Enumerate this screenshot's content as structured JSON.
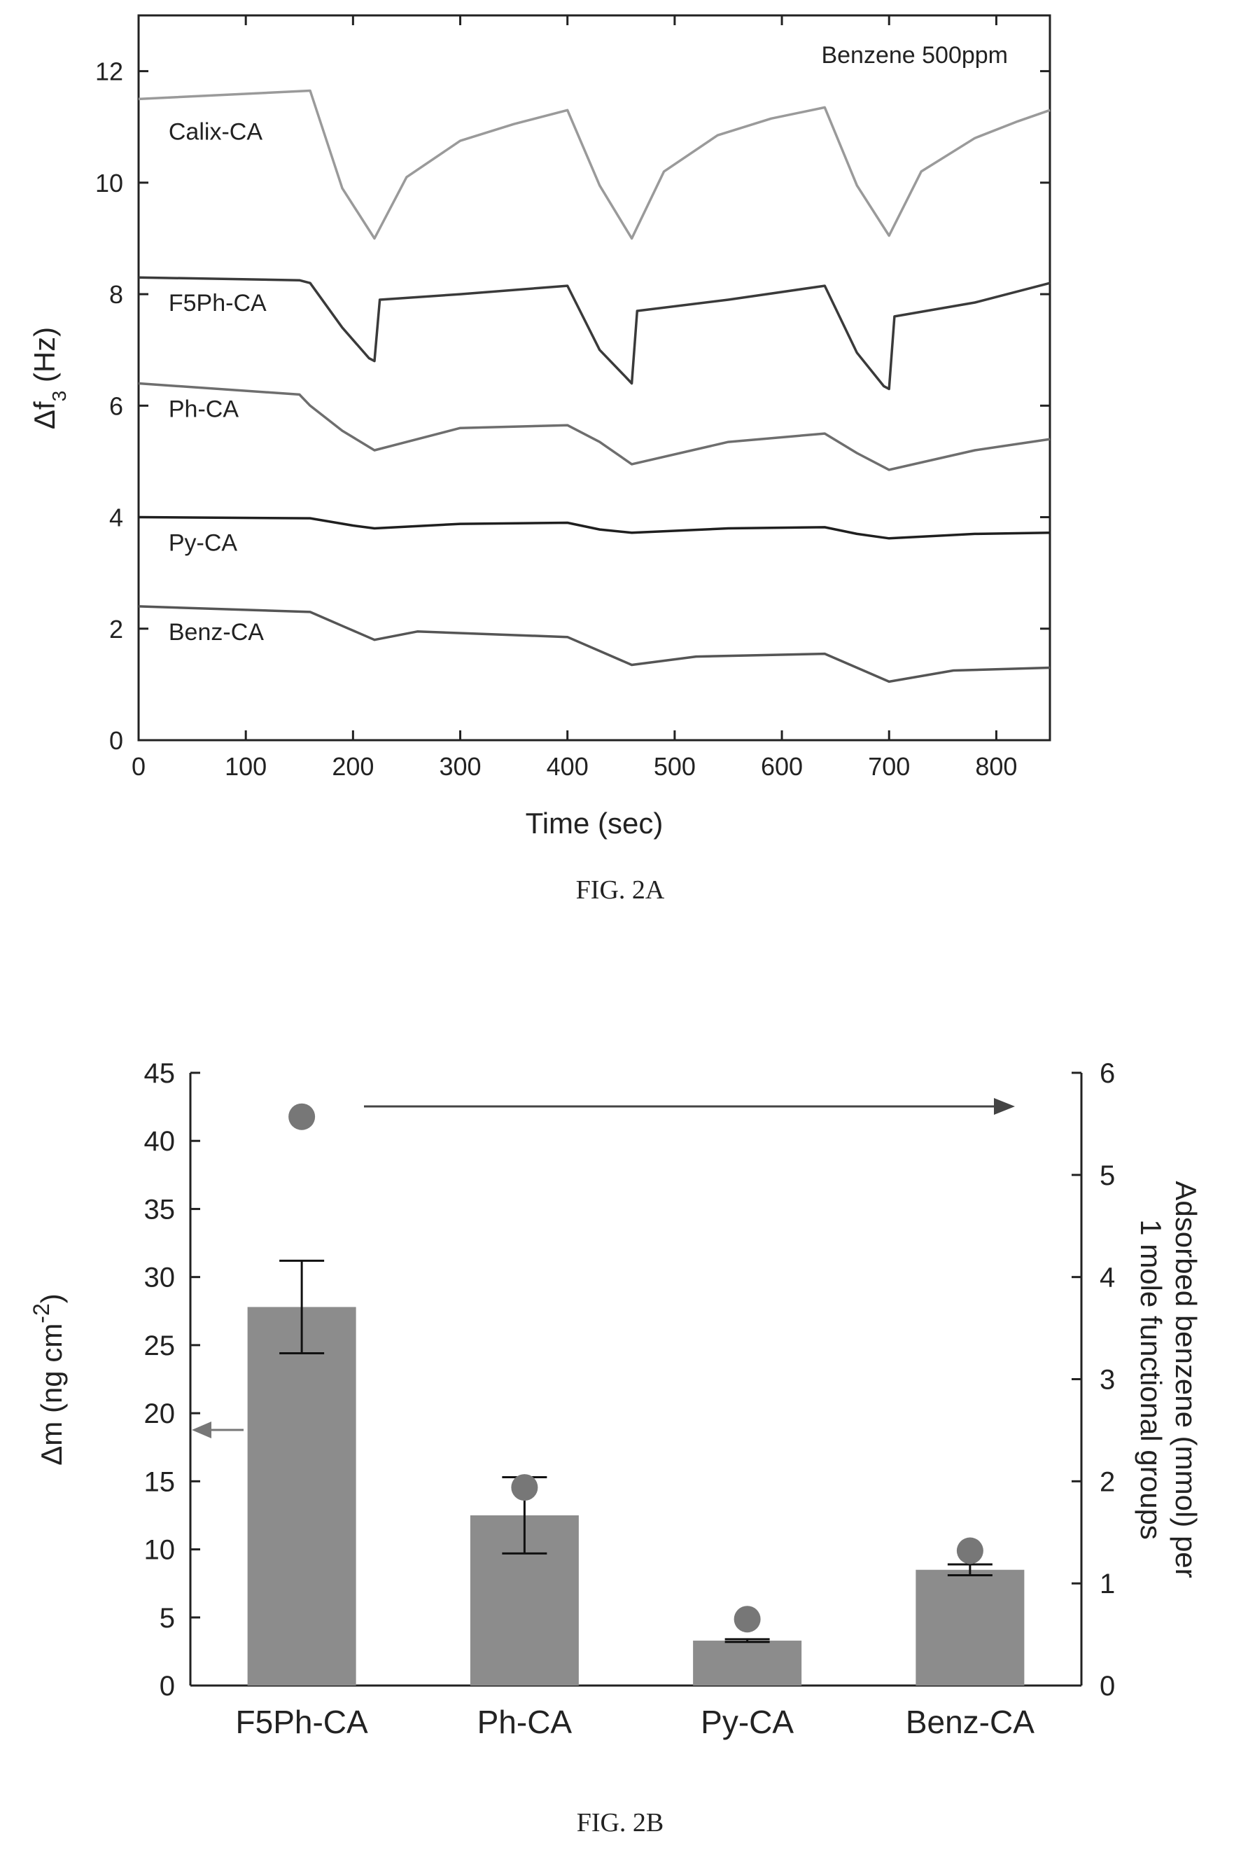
{
  "chart_data": [
    {
      "type": "line",
      "caption": "FIG. 2A",
      "annotation": "Benzene 500ppm",
      "xlabel": "Time (sec)",
      "ylabel_main": "Δf",
      "ylabel_sub": "3",
      "ylabel_unit": " (Hz)",
      "xlim": [
        0,
        850
      ],
      "ylim": [
        0,
        13
      ],
      "xticks": [
        0,
        100,
        200,
        300,
        400,
        500,
        600,
        700,
        800
      ],
      "yticks": [
        0,
        2,
        4,
        6,
        8,
        10,
        12
      ],
      "grid": false,
      "series": [
        {
          "name": "Calix-CA",
          "color": "#9a9a9a",
          "x": [
            0,
            160,
            190,
            220,
            250,
            300,
            350,
            400,
            430,
            460,
            490,
            540,
            590,
            640,
            670,
            700,
            730,
            780,
            820,
            850
          ],
          "y": [
            11.5,
            11.65,
            9.9,
            9.0,
            10.1,
            10.75,
            11.05,
            11.3,
            9.95,
            9.0,
            10.2,
            10.85,
            11.15,
            11.35,
            9.95,
            9.05,
            10.2,
            10.8,
            11.1,
            11.3
          ]
        },
        {
          "name": "F5Ph-CA",
          "color": "#3a3a3a",
          "x": [
            0,
            150,
            160,
            190,
            215,
            220,
            225,
            300,
            400,
            430,
            455,
            460,
            465,
            550,
            640,
            670,
            695,
            700,
            705,
            780,
            850
          ],
          "y": [
            8.3,
            8.25,
            8.2,
            7.4,
            6.85,
            6.8,
            7.9,
            8.0,
            8.15,
            7.0,
            6.5,
            6.4,
            7.7,
            7.9,
            8.15,
            6.95,
            6.35,
            6.3,
            7.6,
            7.85,
            8.2
          ]
        },
        {
          "name": "Ph-CA",
          "color": "#6e6e6e",
          "x": [
            0,
            150,
            160,
            190,
            220,
            300,
            400,
            430,
            460,
            550,
            640,
            670,
            700,
            780,
            850
          ],
          "y": [
            6.4,
            6.2,
            6.0,
            5.55,
            5.2,
            5.6,
            5.65,
            5.35,
            4.95,
            5.35,
            5.5,
            5.15,
            4.85,
            5.2,
            5.4
          ]
        },
        {
          "name": "Py-CA",
          "color": "#1f1f1f",
          "x": [
            0,
            160,
            200,
            220,
            300,
            400,
            430,
            460,
            550,
            640,
            670,
            700,
            780,
            850
          ],
          "y": [
            4.0,
            3.98,
            3.85,
            3.8,
            3.88,
            3.9,
            3.78,
            3.72,
            3.8,
            3.82,
            3.7,
            3.62,
            3.7,
            3.72
          ]
        },
        {
          "name": "Benz-CA",
          "color": "#555555",
          "x": [
            0,
            160,
            190,
            220,
            260,
            400,
            430,
            460,
            520,
            640,
            670,
            700,
            760,
            850
          ],
          "y": [
            2.4,
            2.3,
            2.05,
            1.8,
            1.95,
            1.85,
            1.6,
            1.35,
            1.5,
            1.55,
            1.3,
            1.05,
            1.25,
            1.3
          ]
        }
      ]
    },
    {
      "type": "bar",
      "caption": "FIG. 2B",
      "categories": [
        "F5Ph-CA",
        "Ph-CA",
        "Py-CA",
        "Benz-CA"
      ],
      "ylabel_left_main": "Δm (ng cm",
      "ylabel_left_sup": "-2",
      "ylabel_left_end": ")",
      "ylabel_right_line1": "Adsorbed benzene (mmol) per",
      "ylabel_right_line2": "1 mole functional groups",
      "ylim_left": [
        0,
        45
      ],
      "ylim_right": [
        0,
        6
      ],
      "yticks_left": [
        0,
        5,
        10,
        15,
        20,
        25,
        30,
        35,
        40,
        45
      ],
      "yticks_right": [
        0,
        1,
        2,
        3,
        4,
        5,
        6
      ],
      "bar_color": "#8c8c8c",
      "point_color": "#777777",
      "series": [
        {
          "axis": "left",
          "kind": "bar",
          "values": [
            27.8,
            12.5,
            3.3,
            8.5
          ],
          "error": [
            3.4,
            2.8,
            0.1,
            0.4
          ]
        },
        {
          "axis": "right",
          "kind": "point",
          "values": [
            5.57,
            1.94,
            0.65,
            1.32
          ]
        }
      ]
    }
  ]
}
